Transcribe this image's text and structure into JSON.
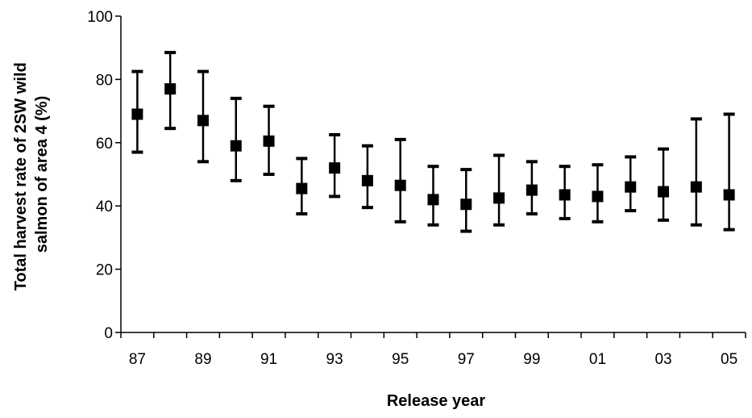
{
  "chart_data": {
    "type": "scatter",
    "title": "",
    "xlabel": "Release year",
    "ylabel": "Total harvest rate of 2SW wild salmon of area 4 (%)",
    "ylabel_lines": [
      "Total harvest rate of 2SW wild",
      "salmon of area 4 (%)"
    ],
    "ylim": [
      0,
      100
    ],
    "yticks": [
      "0",
      "20",
      "40",
      "60",
      "80",
      "100"
    ],
    "x": [
      "87",
      "88",
      "89",
      "90",
      "91",
      "92",
      "93",
      "94",
      "95",
      "96",
      "97",
      "98",
      "99",
      "00",
      "01",
      "02",
      "03",
      "04",
      "05"
    ],
    "xtick_labels_shown": [
      "87",
      "89",
      "91",
      "93",
      "95",
      "97",
      "99",
      "01",
      "03",
      "05"
    ],
    "grid": false,
    "legend": "none",
    "marker_color": "#000000",
    "series": [
      {
        "values": [
          69,
          77,
          67,
          59,
          60.5,
          45.5,
          52,
          48,
          46.5,
          42,
          40.5,
          42.5,
          45,
          43.5,
          43,
          46,
          44.5,
          46,
          43.5
        ],
        "upper": [
          82.5,
          88.5,
          82.5,
          74,
          71.5,
          55,
          62.5,
          59,
          61,
          52.5,
          51.5,
          56,
          54,
          52.5,
          53,
          55.5,
          58,
          67.5,
          69
        ],
        "lower": [
          57,
          64.5,
          54,
          48,
          50,
          37.5,
          43,
          39.5,
          35,
          34,
          32,
          34,
          37.5,
          36,
          35,
          38.5,
          35.5,
          34,
          32.5
        ]
      }
    ]
  }
}
